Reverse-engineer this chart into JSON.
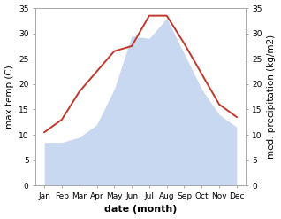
{
  "months": [
    "Jan",
    "Feb",
    "Mar",
    "Apr",
    "May",
    "Jun",
    "Jul",
    "Aug",
    "Sep",
    "Oct",
    "Nov",
    "Dec"
  ],
  "month_x": [
    0,
    1,
    2,
    3,
    4,
    5,
    6,
    7,
    8,
    9,
    10,
    11
  ],
  "temp": [
    10.5,
    13.0,
    18.5,
    22.5,
    26.5,
    27.5,
    33.5,
    33.5,
    28.0,
    22.0,
    16.0,
    13.5
  ],
  "precip": [
    8.5,
    8.5,
    9.5,
    12.0,
    19.0,
    29.5,
    29.0,
    33.0,
    26.0,
    19.0,
    14.0,
    11.5
  ],
  "temp_color": "#c0392b",
  "precip_fill_color": "#c8d8f0",
  "ylim": [
    0,
    35
  ],
  "yticks": [
    0,
    5,
    10,
    15,
    20,
    25,
    30,
    35
  ],
  "xlabel": "date (month)",
  "ylabel_left": "max temp (C)",
  "ylabel_right": "med. precipitation (kg/m2)",
  "background_color": "#ffffff",
  "label_fontsize": 7.5,
  "tick_fontsize": 6.5,
  "xlabel_fontsize": 8,
  "line_width": 1.4,
  "spine_color": "#aaaaaa"
}
